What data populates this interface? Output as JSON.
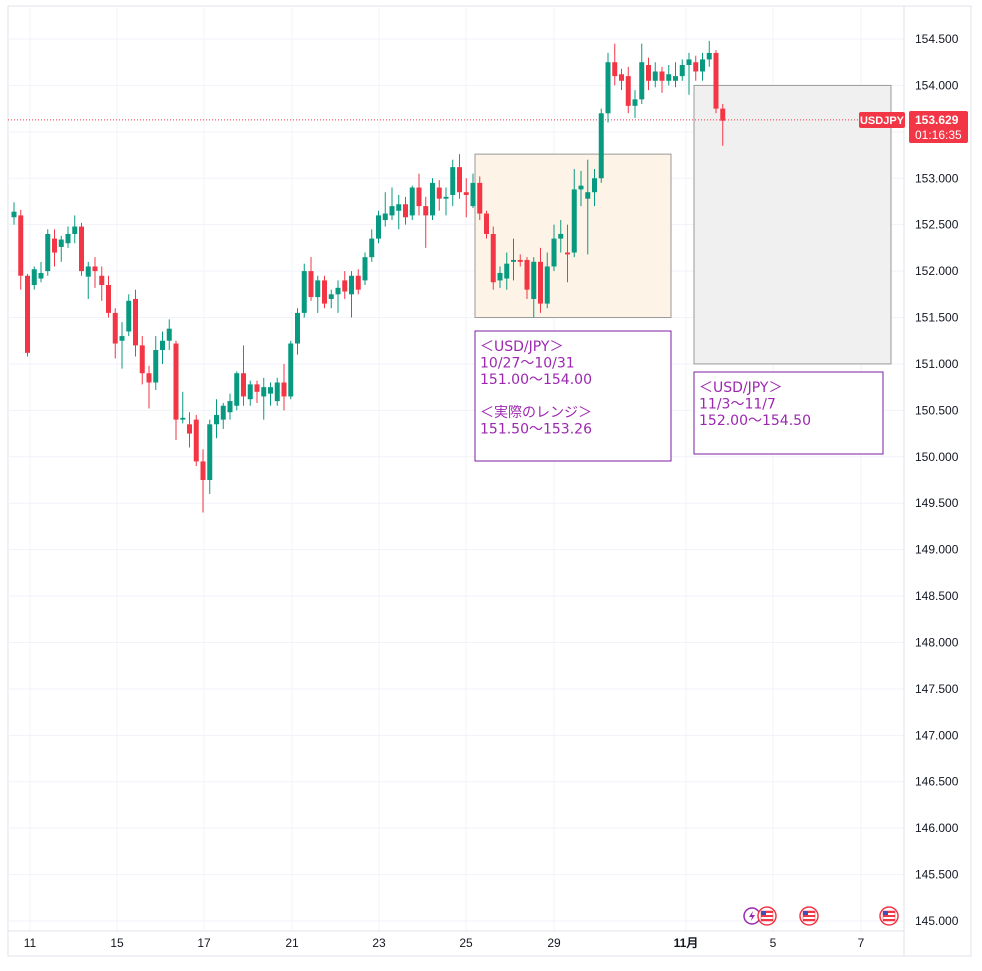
{
  "chart_data": {
    "type": "candlestick",
    "symbol": "USDJPY",
    "current_price": "153.629",
    "countdown": "01:16:35",
    "y_axis": {
      "ylim": [
        144.85,
        154.75
      ],
      "ticks": [
        "154.500",
        "154.000",
        "153.500",
        "153.000",
        "152.500",
        "152.000",
        "151.500",
        "151.000",
        "150.500",
        "150.000",
        "149.500",
        "149.000",
        "148.500",
        "148.000",
        "147.500",
        "147.000",
        "146.500",
        "146.000",
        "145.500",
        "145.000"
      ]
    },
    "x_axis": {
      "ticks": [
        "11",
        "15",
        "17",
        "21",
        "23",
        "25",
        "29",
        "11月",
        "5",
        "7"
      ]
    },
    "candles": [
      {
        "o": 152.58,
        "h": 152.74,
        "l": 152.5,
        "c": 152.64
      },
      {
        "o": 152.6,
        "h": 152.66,
        "l": 151.8,
        "c": 151.95
      },
      {
        "o": 151.95,
        "h": 151.97,
        "l": 151.08,
        "c": 151.12
      },
      {
        "o": 151.85,
        "h": 152.05,
        "l": 151.8,
        "c": 152.02
      },
      {
        "o": 151.92,
        "h": 152.1,
        "l": 151.88,
        "c": 151.98
      },
      {
        "o": 152.0,
        "h": 152.45,
        "l": 151.95,
        "c": 152.4
      },
      {
        "o": 152.35,
        "h": 152.45,
        "l": 152.05,
        "c": 152.2
      },
      {
        "o": 152.26,
        "h": 152.38,
        "l": 152.1,
        "c": 152.34
      },
      {
        "o": 152.3,
        "h": 152.48,
        "l": 152.25,
        "c": 152.4
      },
      {
        "o": 152.4,
        "h": 152.6,
        "l": 152.3,
        "c": 152.48
      },
      {
        "o": 152.48,
        "h": 152.52,
        "l": 151.95,
        "c": 152.0
      },
      {
        "o": 151.94,
        "h": 152.1,
        "l": 151.7,
        "c": 152.05
      },
      {
        "o": 152.05,
        "h": 152.15,
        "l": 151.82,
        "c": 152.0
      },
      {
        "o": 151.95,
        "h": 152.05,
        "l": 151.68,
        "c": 151.85
      },
      {
        "o": 151.85,
        "h": 151.95,
        "l": 151.5,
        "c": 151.55
      },
      {
        "o": 151.55,
        "h": 151.6,
        "l": 151.06,
        "c": 151.22
      },
      {
        "o": 151.25,
        "h": 151.45,
        "l": 150.95,
        "c": 151.3
      },
      {
        "o": 151.35,
        "h": 151.75,
        "l": 151.3,
        "c": 151.68
      },
      {
        "o": 151.7,
        "h": 151.8,
        "l": 151.08,
        "c": 151.2
      },
      {
        "o": 151.2,
        "h": 151.3,
        "l": 150.78,
        "c": 150.9
      },
      {
        "o": 150.9,
        "h": 150.98,
        "l": 150.52,
        "c": 150.8
      },
      {
        "o": 150.8,
        "h": 151.3,
        "l": 150.72,
        "c": 151.15
      },
      {
        "o": 151.15,
        "h": 151.35,
        "l": 151.0,
        "c": 151.25
      },
      {
        "o": 151.25,
        "h": 151.48,
        "l": 151.15,
        "c": 151.38
      },
      {
        "o": 151.22,
        "h": 151.25,
        "l": 150.18,
        "c": 150.4
      },
      {
        "o": 150.4,
        "h": 150.7,
        "l": 150.36,
        "c": 150.42
      },
      {
        "o": 150.35,
        "h": 150.48,
        "l": 150.1,
        "c": 150.25
      },
      {
        "o": 150.4,
        "h": 150.45,
        "l": 149.9,
        "c": 149.95
      },
      {
        "o": 149.95,
        "h": 150.08,
        "l": 149.4,
        "c": 149.75
      },
      {
        "o": 149.75,
        "h": 150.4,
        "l": 149.6,
        "c": 150.35
      },
      {
        "o": 150.35,
        "h": 150.62,
        "l": 150.2,
        "c": 150.45
      },
      {
        "o": 150.4,
        "h": 150.58,
        "l": 150.3,
        "c": 150.55
      },
      {
        "o": 150.48,
        "h": 150.68,
        "l": 150.4,
        "c": 150.6
      },
      {
        "o": 150.55,
        "h": 150.92,
        "l": 150.5,
        "c": 150.9
      },
      {
        "o": 150.9,
        "h": 151.2,
        "l": 150.55,
        "c": 150.65
      },
      {
        "o": 150.62,
        "h": 150.82,
        "l": 150.55,
        "c": 150.78
      },
      {
        "o": 150.78,
        "h": 150.82,
        "l": 150.58,
        "c": 150.7
      },
      {
        "o": 150.65,
        "h": 150.85,
        "l": 150.4,
        "c": 150.75
      },
      {
        "o": 150.68,
        "h": 150.8,
        "l": 150.55,
        "c": 150.75
      },
      {
        "o": 150.6,
        "h": 150.85,
        "l": 150.55,
        "c": 150.8
      },
      {
        "o": 150.8,
        "h": 151.0,
        "l": 150.5,
        "c": 150.65
      },
      {
        "o": 150.65,
        "h": 151.25,
        "l": 150.62,
        "c": 151.22
      },
      {
        "o": 151.22,
        "h": 151.6,
        "l": 151.1,
        "c": 151.55
      },
      {
        "o": 151.55,
        "h": 152.08,
        "l": 151.5,
        "c": 152.0
      },
      {
        "o": 152.0,
        "h": 152.15,
        "l": 151.68,
        "c": 151.72
      },
      {
        "o": 151.72,
        "h": 151.95,
        "l": 151.55,
        "c": 151.9
      },
      {
        "o": 151.9,
        "h": 151.95,
        "l": 151.6,
        "c": 151.65
      },
      {
        "o": 151.7,
        "h": 151.8,
        "l": 151.6,
        "c": 151.75
      },
      {
        "o": 151.75,
        "h": 151.9,
        "l": 151.55,
        "c": 151.82
      },
      {
        "o": 151.9,
        "h": 152.0,
        "l": 151.7,
        "c": 151.78
      },
      {
        "o": 151.75,
        "h": 152.0,
        "l": 151.5,
        "c": 151.95
      },
      {
        "o": 151.95,
        "h": 152.02,
        "l": 151.75,
        "c": 151.8
      },
      {
        "o": 151.9,
        "h": 152.2,
        "l": 151.85,
        "c": 152.15
      },
      {
        "o": 152.15,
        "h": 152.45,
        "l": 152.1,
        "c": 152.35
      },
      {
        "o": 152.35,
        "h": 152.65,
        "l": 152.3,
        "c": 152.6
      },
      {
        "o": 152.55,
        "h": 152.85,
        "l": 152.48,
        "c": 152.62
      },
      {
        "o": 152.6,
        "h": 152.9,
        "l": 152.55,
        "c": 152.7
      },
      {
        "o": 152.65,
        "h": 152.82,
        "l": 152.45,
        "c": 152.72
      },
      {
        "o": 152.72,
        "h": 152.8,
        "l": 152.5,
        "c": 152.58
      },
      {
        "o": 152.6,
        "h": 152.92,
        "l": 152.55,
        "c": 152.9
      },
      {
        "o": 152.9,
        "h": 153.05,
        "l": 152.6,
        "c": 152.7
      },
      {
        "o": 152.7,
        "h": 152.8,
        "l": 152.25,
        "c": 152.6
      },
      {
        "o": 152.6,
        "h": 153.0,
        "l": 152.55,
        "c": 152.95
      },
      {
        "o": 152.9,
        "h": 152.98,
        "l": 152.65,
        "c": 152.78
      },
      {
        "o": 152.78,
        "h": 152.9,
        "l": 152.6,
        "c": 152.8
      },
      {
        "o": 152.82,
        "h": 153.2,
        "l": 152.7,
        "c": 153.12
      },
      {
        "o": 153.12,
        "h": 153.26,
        "l": 152.78,
        "c": 152.85
      },
      {
        "o": 152.85,
        "h": 153.0,
        "l": 152.58,
        "c": 152.82
      },
      {
        "o": 152.7,
        "h": 153.05,
        "l": 152.68,
        "c": 152.95
      },
      {
        "o": 152.95,
        "h": 153.02,
        "l": 152.55,
        "c": 152.62
      },
      {
        "o": 152.62,
        "h": 152.65,
        "l": 152.35,
        "c": 152.4
      },
      {
        "o": 152.4,
        "h": 152.48,
        "l": 151.8,
        "c": 151.88
      },
      {
        "o": 151.9,
        "h": 152.05,
        "l": 151.82,
        "c": 151.98
      },
      {
        "o": 151.92,
        "h": 152.2,
        "l": 151.8,
        "c": 152.08
      },
      {
        "o": 152.1,
        "h": 152.35,
        "l": 151.9,
        "c": 152.12
      },
      {
        "o": 152.12,
        "h": 152.18,
        "l": 152.05,
        "c": 152.1
      },
      {
        "o": 152.12,
        "h": 152.15,
        "l": 151.7,
        "c": 151.8
      },
      {
        "o": 151.7,
        "h": 152.15,
        "l": 151.5,
        "c": 152.1
      },
      {
        "o": 152.1,
        "h": 152.25,
        "l": 151.55,
        "c": 151.65
      },
      {
        "o": 151.65,
        "h": 152.2,
        "l": 151.6,
        "c": 152.05
      },
      {
        "o": 152.05,
        "h": 152.5,
        "l": 152.0,
        "c": 152.35
      },
      {
        "o": 152.35,
        "h": 152.55,
        "l": 152.2,
        "c": 152.4
      },
      {
        "o": 152.2,
        "h": 152.5,
        "l": 151.88,
        "c": 152.18
      },
      {
        "o": 152.2,
        "h": 153.1,
        "l": 152.15,
        "c": 152.88
      },
      {
        "o": 152.88,
        "h": 153.08,
        "l": 152.7,
        "c": 152.92
      },
      {
        "o": 152.78,
        "h": 153.2,
        "l": 152.18,
        "c": 152.85
      },
      {
        "o": 152.85,
        "h": 153.1,
        "l": 152.7,
        "c": 153.0
      },
      {
        "o": 153.0,
        "h": 153.75,
        "l": 152.95,
        "c": 153.7
      },
      {
        "o": 153.7,
        "h": 154.35,
        "l": 153.6,
        "c": 154.25
      },
      {
        "o": 154.25,
        "h": 154.45,
        "l": 154.0,
        "c": 154.1
      },
      {
        "o": 154.12,
        "h": 154.18,
        "l": 153.95,
        "c": 154.05
      },
      {
        "o": 154.1,
        "h": 154.2,
        "l": 153.7,
        "c": 153.78
      },
      {
        "o": 153.78,
        "h": 153.95,
        "l": 153.65,
        "c": 153.85
      },
      {
        "o": 153.85,
        "h": 154.45,
        "l": 153.8,
        "c": 154.25
      },
      {
        "o": 154.22,
        "h": 154.3,
        "l": 153.95,
        "c": 154.05
      },
      {
        "o": 154.05,
        "h": 154.25,
        "l": 153.98,
        "c": 154.15
      },
      {
        "o": 154.15,
        "h": 154.2,
        "l": 153.92,
        "c": 154.05
      },
      {
        "o": 154.05,
        "h": 154.22,
        "l": 154.0,
        "c": 154.12
      },
      {
        "o": 154.05,
        "h": 154.25,
        "l": 153.98,
        "c": 154.1
      },
      {
        "o": 154.1,
        "h": 154.28,
        "l": 154.05,
        "c": 154.22
      },
      {
        "o": 154.22,
        "h": 154.35,
        "l": 153.9,
        "c": 154.28
      },
      {
        "o": 154.25,
        "h": 154.32,
        "l": 154.05,
        "c": 154.15
      },
      {
        "o": 154.15,
        "h": 154.35,
        "l": 154.05,
        "c": 154.28
      },
      {
        "o": 154.28,
        "h": 154.48,
        "l": 154.2,
        "c": 154.35
      },
      {
        "o": 154.35,
        "h": 154.38,
        "l": 153.7,
        "c": 153.75
      },
      {
        "o": 153.75,
        "h": 153.8,
        "l": 153.35,
        "c": 153.62
      }
    ],
    "annotations": [
      {
        "id": "range-actual",
        "ylim": [
          151.5,
          153.26
        ],
        "fill": "#fdf3e6",
        "stroke": "#9a9a9a"
      },
      {
        "id": "range-forecast",
        "ylim": [
          151.0,
          154.0
        ],
        "fill": "#f0f0f0",
        "stroke": "#9a9a9a"
      }
    ],
    "notes": [
      {
        "id": "note-last-week",
        "lines": [
          "＜USD/JPY＞",
          "10/27～10/31",
          "151.00～154.00",
          "",
          "＜実際のレンジ＞",
          "151.50～153.26"
        ]
      },
      {
        "id": "note-this-week",
        "lines": [
          "＜USD/JPY＞",
          "11/3～11/7",
          "152.00～154.50"
        ]
      }
    ],
    "colors": {
      "up": "#089981",
      "down": "#f23645",
      "grid": "#f0f3fa",
      "axis_text": "#131722",
      "note_text": "#9c27b0",
      "note_border": "#7b1fa2",
      "price_line": "#f23645"
    },
    "events": [
      "flash-icon",
      "us-flag-icon",
      "us-flag-icon",
      "us-flag-icon"
    ]
  }
}
